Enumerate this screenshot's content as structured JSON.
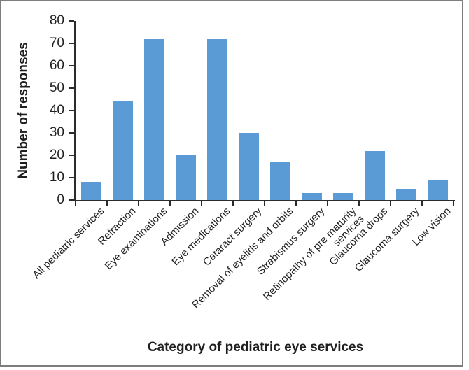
{
  "chart_data": {
    "type": "bar",
    "title": "",
    "categories": [
      "All pediatric services",
      "Refraction",
      "Eye examinations",
      "Admission",
      "Eye medications",
      "Cataract surgery",
      "Removal of eyelids and orbits",
      "Strabismus surgery",
      "Retinopathy of pre maturity\nservices",
      "Glaucoma drops",
      "Glaucoma surgery",
      "Low vision"
    ],
    "values": [
      8,
      44,
      72,
      20,
      72,
      30,
      17,
      3,
      3,
      22,
      5,
      9
    ],
    "xlabel": "Category of pediatric eye services",
    "ylabel": "Number of responses",
    "ylim": [
      0,
      80
    ],
    "ytick_step": 10,
    "ytick_labels": [
      "0",
      "10",
      "20",
      "30",
      "40",
      "50",
      "60",
      "70",
      "80"
    ],
    "grid": false,
    "legend": false,
    "bar_color": "#5B9BD5",
    "axis_color": "#2b2b2b",
    "text_color": "#1f1f1f",
    "frame_color": "#7b7d7f"
  }
}
